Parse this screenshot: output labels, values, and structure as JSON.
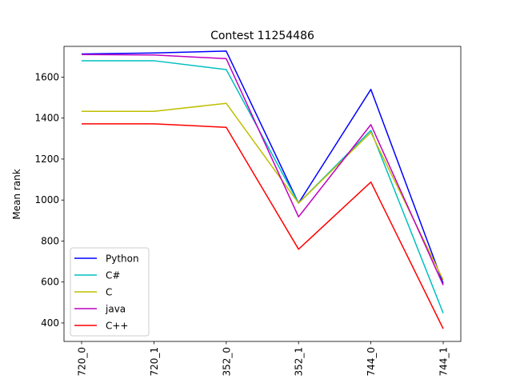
{
  "chart_data": {
    "type": "line",
    "title": "Contest 11254486",
    "xlabel": "",
    "ylabel": "Mean rank",
    "categories": [
      "720_0",
      "720_1",
      "352_0",
      "352_1",
      "744_0",
      "744_1"
    ],
    "ylim": [
      310,
      1750
    ],
    "yticks": [
      400,
      600,
      800,
      1000,
      1200,
      1400,
      1600
    ],
    "legend_position": "lower-left",
    "grid": false,
    "series": [
      {
        "name": "Python",
        "color": "#0000ff",
        "values": [
          1713,
          1718,
          1727,
          985,
          1540,
          593
        ]
      },
      {
        "name": "C#",
        "color": "#00bfbf",
        "values": [
          1680,
          1680,
          1637,
          985,
          1340,
          448
        ]
      },
      {
        "name": "C",
        "color": "#bfbf00",
        "values": [
          1433,
          1433,
          1472,
          985,
          1330,
          610
        ]
      },
      {
        "name": "java",
        "color": "#bf00bf",
        "values": [
          1710,
          1708,
          1690,
          918,
          1368,
          585
        ]
      },
      {
        "name": "C++",
        "color": "#ff0000",
        "values": [
          1372,
          1372,
          1355,
          760,
          1088,
          372
        ]
      }
    ]
  }
}
